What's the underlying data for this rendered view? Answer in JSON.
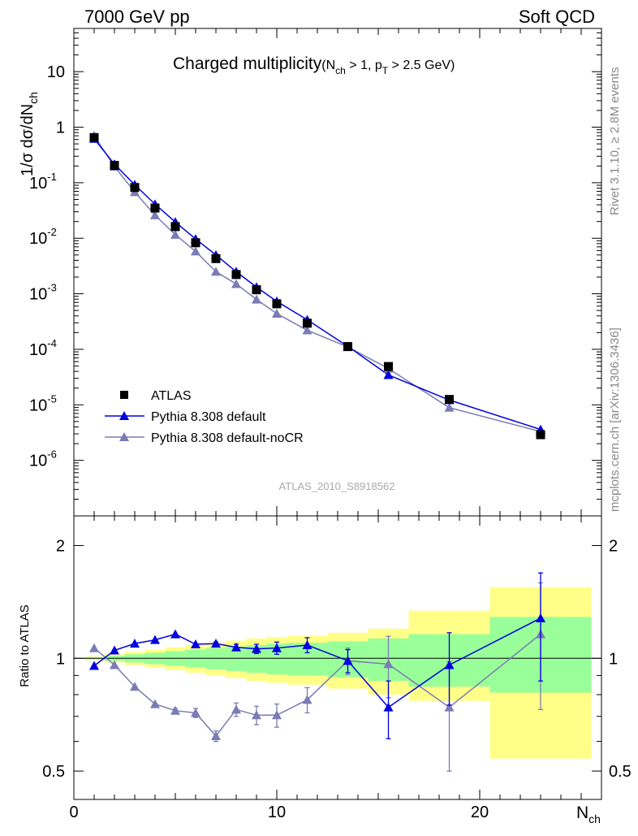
{
  "header": {
    "left": "7000 GeV pp",
    "right": "Soft QCD",
    "title": "Charged multiplicity",
    "title_cond": "(N",
    "title_cond_sub": "ch",
    "title_cond2": " > 1, p",
    "title_cond2_sub": "T",
    "title_cond3": " > 2.5 GeV)"
  },
  "side_labels": {
    "rivet": "Rivet 3.1.10, ≥ 2.8M events",
    "mcplots": "mcplots.cern.ch [arXiv:1306.3436]"
  },
  "analysis_id": "ATLAS_2010_S8918562",
  "colors": {
    "atlas": "#000000",
    "pythia_default": "#0000dd",
    "pythia_nocr": "#7b7bb5",
    "band_green": "#99ff99",
    "band_yellow": "#ffff88"
  },
  "chart_data": [
    {
      "type": "scatter",
      "panel": "main",
      "ylabel": "1/σ dσ/dN_ch",
      "yscale": "log",
      "ylim": [
        1e-07,
        60
      ],
      "xlim": [
        0,
        26
      ],
      "ytick_labels": [
        {
          "exp": "-6",
          "v": 1e-06
        },
        {
          "exp": "-5",
          "v": 1e-05
        },
        {
          "exp": "-4",
          "v": 0.0001
        },
        {
          "exp": "-3",
          "v": 0.001
        },
        {
          "exp": "-2",
          "v": 0.01
        },
        {
          "exp": "-1",
          "v": 0.1
        }
      ],
      "ytick_plain": [
        {
          "label": "1",
          "v": 1
        },
        {
          "label": "10",
          "v": 10
        }
      ],
      "legend": {
        "placement": "lower-left",
        "entries": [
          "ATLAS",
          "Pythia 8.308 default",
          "Pythia 8.308 default-noCR"
        ]
      },
      "series": [
        {
          "name": "ATLAS",
          "x": [
            1,
            2,
            3,
            4,
            5,
            6,
            7,
            8,
            9,
            10,
            11.5,
            13.5,
            15.5,
            18.5,
            23
          ],
          "y": [
            0.65,
            0.205,
            0.082,
            0.035,
            0.0162,
            0.0083,
            0.0043,
            0.00222,
            0.00118,
            0.00066,
            0.000295,
            0.000112,
            4.9e-05,
            1.25e-05,
            2.9e-06
          ]
        },
        {
          "name": "Pythia 8.308 default",
          "x": [
            1,
            2,
            3,
            4,
            5,
            6,
            7,
            8,
            9,
            10,
            11.5,
            13.5,
            15.5,
            18.5,
            23
          ],
          "y": [
            0.62,
            0.215,
            0.092,
            0.041,
            0.0196,
            0.0097,
            0.005,
            0.0025,
            0.00132,
            0.00073,
            0.00034,
            0.000113,
            3.45e-05,
            1.22e-05,
            3.6e-06
          ]
        },
        {
          "name": "Pythia 8.308 default-noCR",
          "x": [
            1,
            2,
            3,
            4,
            5,
            6,
            7,
            8,
            9,
            10,
            11.5,
            13.5,
            15.5,
            18.5,
            23
          ],
          "y": [
            0.7,
            0.195,
            0.068,
            0.026,
            0.0116,
            0.0058,
            0.0025,
            0.0015,
            0.00079,
            0.00044,
            0.00022,
            0.00011,
            4.5e-05,
            8.9e-06,
            3.3e-06
          ]
        }
      ]
    },
    {
      "type": "line",
      "panel": "ratio",
      "ylabel": "Ratio to ATLAS",
      "xlabel": "N_ch",
      "yscale": "log",
      "ylim": [
        0.42,
        2.4
      ],
      "xlim": [
        0,
        26
      ],
      "xticks": [
        0,
        10,
        20
      ],
      "yticks": [
        0.5,
        1,
        2
      ],
      "reference_line": 1,
      "bands": {
        "edges": [
          0.5,
          1.5,
          2.5,
          3.5,
          4.5,
          5.5,
          6.5,
          7.5,
          8.5,
          9.5,
          10.5,
          12.5,
          14.5,
          16.5,
          20.5,
          25.5
        ],
        "green": [
          [
            0.995,
            1.005
          ],
          [
            0.985,
            1.015
          ],
          [
            0.975,
            1.025
          ],
          [
            0.965,
            1.035
          ],
          [
            0.955,
            1.045
          ],
          [
            0.945,
            1.055
          ],
          [
            0.935,
            1.065
          ],
          [
            0.925,
            1.075
          ],
          [
            0.915,
            1.085
          ],
          [
            0.905,
            1.095
          ],
          [
            0.9,
            1.1
          ],
          [
            0.89,
            1.11
          ],
          [
            0.87,
            1.13
          ],
          [
            0.84,
            1.16
          ],
          [
            0.81,
            1.29
          ]
        ],
        "yellow": [
          [
            0.99,
            1.01
          ],
          [
            0.975,
            1.025
          ],
          [
            0.96,
            1.04
          ],
          [
            0.945,
            1.055
          ],
          [
            0.93,
            1.07
          ],
          [
            0.915,
            1.085
          ],
          [
            0.9,
            1.1
          ],
          [
            0.885,
            1.115
          ],
          [
            0.87,
            1.13
          ],
          [
            0.86,
            1.14
          ],
          [
            0.85,
            1.15
          ],
          [
            0.83,
            1.17
          ],
          [
            0.8,
            1.2
          ],
          [
            0.77,
            1.34
          ],
          [
            0.54,
            1.55
          ]
        ]
      },
      "series": [
        {
          "name": "Pythia 8.308 default",
          "x": [
            1,
            2,
            3,
            4,
            5,
            6,
            7,
            8,
            9,
            10,
            11.5,
            13.5,
            15.5,
            18.5,
            23
          ],
          "y": [
            0.955,
            1.05,
            1.095,
            1.12,
            1.16,
            1.09,
            1.095,
            1.07,
            1.06,
            1.065,
            1.085,
            0.985,
            0.74,
            0.96,
            1.28
          ],
          "err": [
            0,
            0,
            0,
            0,
            0,
            0,
            0.01,
            0.02,
            0.03,
            0.04,
            0.05,
            0.07,
            0.13,
            0.21,
            0.41
          ]
        },
        {
          "name": "Pythia 8.308 default-noCR",
          "x": [
            1,
            2,
            3,
            4,
            5,
            6,
            7,
            8,
            9,
            10,
            11.5,
            13.5,
            15.5,
            18.5,
            23
          ],
          "y": [
            1.065,
            0.96,
            0.84,
            0.755,
            0.725,
            0.715,
            0.62,
            0.73,
            0.705,
            0.705,
            0.775,
            0.985,
            0.965,
            0.74,
            1.16
          ],
          "err": [
            0,
            0,
            0,
            0,
            0.01,
            0.02,
            0.02,
            0.03,
            0.04,
            0.05,
            0.06,
            0.08,
            0.18,
            0.24,
            0.43
          ]
        }
      ]
    }
  ]
}
